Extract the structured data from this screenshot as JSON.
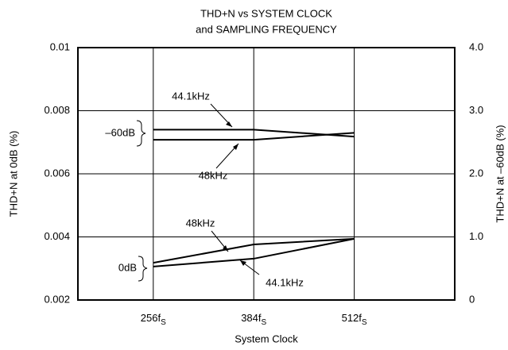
{
  "chart_data": {
    "type": "line",
    "title": [
      "THD+N vs SYSTEM CLOCK",
      "and SAMPLING FREQUENCY"
    ],
    "x_label": "System Clock",
    "y_label": "THD+N at 0dB (%)",
    "y2_label": "THD+N at –60dB (%)",
    "x": [
      256,
      384,
      512
    ],
    "xlim": [
      160,
      640
    ],
    "xticks": [
      {
        "value": 256,
        "label": "256f",
        "subscript": "S"
      },
      {
        "value": 384,
        "label": "384f",
        "subscript": "S"
      },
      {
        "value": 512,
        "label": "512f",
        "subscript": "S"
      }
    ],
    "ylim": [
      0.002,
      0.01
    ],
    "yticks": [
      0.002,
      0.004,
      0.006,
      0.008,
      0.01
    ],
    "y2lim": [
      0,
      4
    ],
    "y2ticks": [
      0,
      {
        "value": 1,
        "label": "1.0"
      },
      {
        "value": 2,
        "label": "2.0"
      },
      {
        "value": 3,
        "label": "3.0"
      },
      {
        "value": 4,
        "label": "4.0"
      }
    ],
    "grid": true,
    "series": [
      {
        "name": "44.1kHz",
        "color": "#000000",
        "axis": "y2",
        "values": [
          2.7,
          2.7,
          2.59
        ]
      },
      {
        "name": "48kHz",
        "color": "#000000",
        "axis": "y2",
        "values": [
          2.54,
          2.54,
          2.65
        ]
      },
      {
        "name": "48kHz",
        "color": "#000000",
        "axis": "y",
        "values": [
          0.00318,
          0.00376,
          0.00394
        ]
      },
      {
        "name": "44.1kHz",
        "color": "#000000",
        "axis": "y",
        "values": [
          0.00306,
          0.00331,
          0.00394
        ]
      }
    ],
    "annotations": [
      "–60dB",
      "0dB"
    ]
  }
}
